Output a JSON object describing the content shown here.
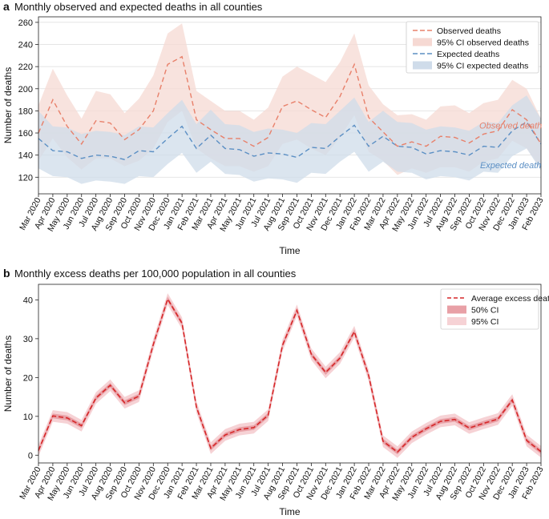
{
  "panels": {
    "a": {
      "letter": "a",
      "title": "Monthly observed and expected deaths in all counties",
      "xlabel": "Time",
      "ylabel": "Number of deaths",
      "legend": [
        "Observed deaths",
        "95% CI observed deaths",
        "Expected deaths",
        "95% CI expected deaths"
      ],
      "annot_observed": "Observed death",
      "annot_expected": "Expected death"
    },
    "b": {
      "letter": "b",
      "title": "Monthly excess deaths per 100,000 population in all counties",
      "xlabel": "Time",
      "ylabel": "Number of deaths",
      "legend": [
        "Average excess deaths",
        "50% CI",
        "95% CI"
      ]
    }
  },
  "colors": {
    "observed_line": "#e8806a",
    "observed_band": "#f6d9d3",
    "expected_line": "#5b8fc4",
    "expected_band": "#cfdcea",
    "excess_line": "#d62728",
    "excess_ci50": "#e8a0a6",
    "excess_ci95": "#f6d2d5"
  },
  "chart_data": [
    {
      "type": "line",
      "title": "Monthly observed and expected deaths in all counties",
      "xlabel": "Time",
      "ylabel": "Number of deaths",
      "ylim": [
        105,
        265
      ],
      "yticks": [
        120,
        140,
        160,
        180,
        200,
        220,
        240,
        260
      ],
      "grid": true,
      "legend_position": "top-right",
      "categories": [
        "Mar 2020",
        "Apr 2020",
        "May 2020",
        "Jun 2020",
        "Jul 2020",
        "Aug 2020",
        "Sep 2020",
        "Oct 2020",
        "Nov 2020",
        "Dec 2020",
        "Jan 2021",
        "Feb 2021",
        "Mar 2021",
        "Apr 2021",
        "May 2021",
        "Jun 2021",
        "Jul 2021",
        "Aug 2021",
        "Sep 2021",
        "Oct 2021",
        "Nov 2021",
        "Dec 2021",
        "Jan 2022",
        "Feb 2022",
        "Mar 2022",
        "Apr 2022",
        "May 2022",
        "Jun 2022",
        "Jul 2022",
        "Aug 2022",
        "Sep 2022",
        "Oct 2022",
        "Nov 2022",
        "Dec 2022",
        "Jan 2023",
        "Feb 2023"
      ],
      "series": [
        {
          "name": "Observed deaths",
          "style": "dashed",
          "values": [
            160,
            190,
            166,
            150,
            171,
            169,
            154,
            163,
            180,
            222,
            229,
            172,
            163,
            155,
            155,
            148,
            156,
            184,
            189,
            181,
            174,
            193,
            222,
            174,
            161,
            148,
            152,
            148,
            157,
            156,
            151,
            159,
            162,
            181,
            172,
            150
          ],
          "ci95_lower": [
            135,
            155,
            138,
            127,
            137,
            137,
            130,
            135,
            146,
            170,
            180,
            146,
            137,
            130,
            130,
            125,
            130,
            150,
            154,
            146,
            140,
            156,
            176,
            143,
            135,
            122,
            128,
            124,
            129,
            129,
            125,
            134,
            137,
            153,
            146,
            128
          ],
          "ci95_upper": [
            185,
            218,
            194,
            173,
            198,
            195,
            178,
            191,
            212,
            250,
            259,
            198,
            189,
            180,
            180,
            172,
            183,
            211,
            220,
            213,
            206,
            224,
            250,
            203,
            186,
            176,
            177,
            172,
            184,
            185,
            178,
            187,
            190,
            208,
            200,
            173
          ]
        },
        {
          "name": "Expected deaths",
          "style": "dashed",
          "values": [
            155,
            144,
            143,
            137,
            140,
            139,
            136,
            144,
            143,
            155,
            166,
            146,
            158,
            146,
            145,
            139,
            142,
            141,
            138,
            147,
            146,
            157,
            167,
            148,
            157,
            148,
            147,
            141,
            144,
            143,
            140,
            148,
            147,
            162,
            170,
            150
          ],
          "ci95_lower": [
            128,
            121,
            120,
            114,
            117,
            116,
            114,
            121,
            120,
            132,
            142,
            124,
            134,
            123,
            122,
            116,
            119,
            118,
            115,
            124,
            123,
            134,
            143,
            125,
            134,
            125,
            124,
            118,
            121,
            120,
            117,
            125,
            124,
            139,
            146,
            126
          ],
          "ci95_upper": [
            180,
            166,
            165,
            159,
            162,
            161,
            158,
            166,
            165,
            178,
            190,
            168,
            181,
            168,
            167,
            161,
            164,
            163,
            160,
            169,
            168,
            180,
            192,
            170,
            180,
            170,
            169,
            163,
            166,
            165,
            162,
            170,
            169,
            185,
            194,
            173
          ]
        }
      ],
      "annotations": [
        "Observed death",
        "Expected death"
      ]
    },
    {
      "type": "line",
      "title": "Monthly excess deaths per 100,000 population in all counties",
      "xlabel": "Time",
      "ylabel": "Number of deaths",
      "ylim": [
        -2,
        44
      ],
      "yticks": [
        0,
        10,
        20,
        30,
        40
      ],
      "grid": false,
      "legend_position": "top-right",
      "categories": [
        "Mar 2020",
        "Apr 2020",
        "May 2020",
        "Jun 2020",
        "Jul 2020",
        "Aug 2020",
        "Sep 2020",
        "Oct 2020",
        "Nov 2020",
        "Dec 2020",
        "Jan 2021",
        "Feb 2021",
        "Mar 2021",
        "Apr 2021",
        "May 2021",
        "Jun 2021",
        "Jul 2021",
        "Aug 2021",
        "Sep 2021",
        "Oct 2021",
        "Nov 2021",
        "Dec 2021",
        "Jan 2022",
        "Feb 2022",
        "Mar 2022",
        "Apr 2022",
        "May 2022",
        "Jun 2022",
        "Jul 2022",
        "Aug 2022",
        "Sep 2022",
        "Oct 2022",
        "Nov 2022",
        "Dec 2022",
        "Jan 2023",
        "Feb 2023"
      ],
      "series": [
        {
          "name": "Average excess deaths",
          "style": "dashed",
          "values": [
            1.2,
            10.1,
            9.6,
            7.6,
            14.7,
            18.0,
            13.5,
            15.2,
            28.5,
            40.2,
            34.0,
            12.4,
            1.8,
            5.2,
            6.6,
            7.1,
            10.3,
            28.3,
            37.3,
            26.0,
            21.3,
            25.0,
            31.8,
            20.5,
            3.6,
            0.8,
            4.6,
            6.8,
            8.7,
            9.2,
            7.0,
            8.2,
            9.3,
            14.2,
            3.8,
            0.9
          ],
          "ci50_halfwidth": 0.6,
          "ci95_halfwidth": 1.5
        }
      ]
    }
  ]
}
